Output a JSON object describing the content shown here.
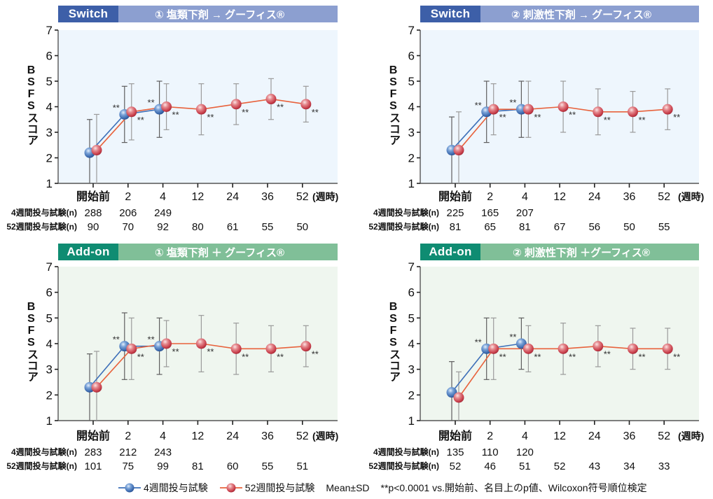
{
  "figure": {
    "y_axis_label": "BSFSスコア",
    "x_unit": "(週時)"
  },
  "legend": {
    "series_4w": "4週間投与試験",
    "series_52w": "52週間投与試験",
    "mean_sd": "Mean±SD",
    "footnote": "**p<0.0001 vs.開始前、名目上のp値、Wilcoxon符号順位検定"
  },
  "colors": {
    "series_4w": "#3d6fb8",
    "series_52w": "#e8623c",
    "switch_tag": "#3d5fa8",
    "switch_bar": "#8c9fd0",
    "addon_tag": "#0f8c72",
    "addon_bar": "#80bf98",
    "switch_plot_bg": "#eef6fd",
    "addon_plot_bg": "#eff6ef"
  },
  "chart_data": [
    {
      "type": "line",
      "header": {
        "tag": "Switch",
        "title": "① 塩類下剤 → グーフィス®"
      },
      "title": "Switch ① 塩類下剤 → グーフィス®",
      "xlabel": "(週時)",
      "ylabel": "BSFSスコア",
      "ylim": [
        1,
        7
      ],
      "yticks": [
        "1",
        "2",
        "3",
        "4",
        "5",
        "6",
        "7"
      ],
      "grid": false,
      "categories": [
        "開始前",
        "2",
        "4",
        "12",
        "24",
        "36",
        "52"
      ],
      "colors": {
        "tag": "#3d5fa8",
        "bar": "#8c9fd0",
        "plot_bg": "#eef6fd"
      },
      "series": [
        {
          "name": "4週間投与試験",
          "color": "#3d6fb8",
          "values": [
            2.2,
            3.7,
            3.9,
            null,
            null,
            null,
            null
          ],
          "sd": [
            1.3,
            1.1,
            1.1,
            null,
            null,
            null,
            null
          ],
          "significance": [
            "",
            "**",
            "**",
            "",
            "",
            "",
            ""
          ]
        },
        {
          "name": "52週間投与試験",
          "color": "#e8623c",
          "values": [
            2.3,
            3.8,
            4.0,
            3.9,
            4.1,
            4.3,
            4.1
          ],
          "sd": [
            1.4,
            1.1,
            0.9,
            1.0,
            0.8,
            0.8,
            0.7
          ],
          "significance": [
            "",
            "**",
            "**",
            "**",
            "**",
            "**",
            "**"
          ]
        }
      ],
      "n_rows": [
        {
          "label": "4週間投与試験(n)",
          "values": [
            "288",
            "206",
            "249"
          ]
        },
        {
          "label": "52週間投与試験(n)",
          "values": [
            "90",
            "70",
            "92",
            "80",
            "61",
            "55",
            "50"
          ]
        }
      ]
    },
    {
      "type": "line",
      "header": {
        "tag": "Switch",
        "title": "② 刺激性下剤 → グーフィス®"
      },
      "title": "Switch ② 刺激性下剤 → グーフィス®",
      "xlabel": "(週時)",
      "ylabel": "BSFSスコア",
      "ylim": [
        1,
        7
      ],
      "yticks": [
        "1",
        "2",
        "3",
        "4",
        "5",
        "6",
        "7"
      ],
      "grid": false,
      "categories": [
        "開始前",
        "2",
        "4",
        "12",
        "24",
        "36",
        "52"
      ],
      "colors": {
        "tag": "#3d5fa8",
        "bar": "#8c9fd0",
        "plot_bg": "#eef6fd"
      },
      "series": [
        {
          "name": "4週間投与試験",
          "color": "#3d6fb8",
          "values": [
            2.3,
            3.8,
            3.9,
            null,
            null,
            null,
            null
          ],
          "sd": [
            1.3,
            1.2,
            1.1,
            null,
            null,
            null,
            null
          ],
          "significance": [
            "",
            "**",
            "**",
            "",
            "",
            "",
            ""
          ]
        },
        {
          "name": "52週間投与試験",
          "color": "#e8623c",
          "values": [
            2.3,
            3.9,
            3.9,
            4.0,
            3.8,
            3.8,
            3.9
          ],
          "sd": [
            1.5,
            1.0,
            1.1,
            1.0,
            0.9,
            0.8,
            0.8
          ],
          "significance": [
            "",
            "**",
            "**",
            "**",
            "**",
            "**",
            "**"
          ]
        }
      ],
      "n_rows": [
        {
          "label": "4週間投与試験(n)",
          "values": [
            "225",
            "165",
            "207"
          ]
        },
        {
          "label": "52週間投与試験(n)",
          "values": [
            "81",
            "65",
            "81",
            "67",
            "56",
            "50",
            "55"
          ]
        }
      ]
    },
    {
      "type": "line",
      "header": {
        "tag": "Add-on",
        "title": "① 塩類下剤 ＋ グーフィス®"
      },
      "title": "Add-on ① 塩類下剤 ＋ グーフィス®",
      "xlabel": "(週時)",
      "ylabel": "BSFSスコア",
      "ylim": [
        1,
        7
      ],
      "yticks": [
        "1",
        "2",
        "3",
        "4",
        "5",
        "6",
        "7"
      ],
      "grid": false,
      "categories": [
        "開始前",
        "2",
        "4",
        "12",
        "24",
        "36",
        "52"
      ],
      "colors": {
        "tag": "#0f8c72",
        "bar": "#80bf98",
        "plot_bg": "#eff6ef"
      },
      "series": [
        {
          "name": "4週間投与試験",
          "color": "#3d6fb8",
          "values": [
            2.3,
            3.9,
            3.9,
            null,
            null,
            null,
            null
          ],
          "sd": [
            1.3,
            1.3,
            1.1,
            null,
            null,
            null,
            null
          ],
          "significance": [
            "",
            "**",
            "**",
            "",
            "",
            "",
            ""
          ]
        },
        {
          "name": "52週間投与試験",
          "color": "#e8623c",
          "values": [
            2.3,
            3.8,
            4.0,
            4.0,
            3.8,
            3.8,
            3.9
          ],
          "sd": [
            1.4,
            1.2,
            0.9,
            1.1,
            1.0,
            0.9,
            0.8
          ],
          "significance": [
            "",
            "**",
            "**",
            "**",
            "**",
            "**",
            "**"
          ]
        }
      ],
      "n_rows": [
        {
          "label": "4週間投与試験(n)",
          "values": [
            "283",
            "212",
            "243"
          ]
        },
        {
          "label": "52週間投与試験(n)",
          "values": [
            "101",
            "75",
            "99",
            "81",
            "60",
            "55",
            "51"
          ]
        }
      ]
    },
    {
      "type": "line",
      "header": {
        "tag": "Add-on",
        "title": "② 刺激性下剤 ＋グーフィス®"
      },
      "title": "Add-on ② 刺激性下剤 ＋グーフィス®",
      "xlabel": "(週時)",
      "ylabel": "BSFSスコア",
      "ylim": [
        1,
        7
      ],
      "yticks": [
        "1",
        "2",
        "3",
        "4",
        "5",
        "6",
        "7"
      ],
      "grid": false,
      "categories": [
        "開始前",
        "2",
        "4",
        "12",
        "24",
        "36",
        "52"
      ],
      "colors": {
        "tag": "#0f8c72",
        "bar": "#80bf98",
        "plot_bg": "#eff6ef"
      },
      "series": [
        {
          "name": "4週間投与試験",
          "color": "#3d6fb8",
          "values": [
            2.1,
            3.8,
            4.0,
            null,
            null,
            null,
            null
          ],
          "sd": [
            1.2,
            1.2,
            1.0,
            null,
            null,
            null,
            null
          ],
          "significance": [
            "",
            "**",
            "**",
            "",
            "",
            "",
            ""
          ]
        },
        {
          "name": "52週間投与試験",
          "color": "#e8623c",
          "values": [
            1.9,
            3.8,
            3.8,
            3.8,
            3.9,
            3.8,
            3.8
          ],
          "sd": [
            1.0,
            1.2,
            0.9,
            1.0,
            0.8,
            0.8,
            0.8
          ],
          "significance": [
            "",
            "**",
            "**",
            "**",
            "**",
            "**",
            "**"
          ]
        }
      ],
      "n_rows": [
        {
          "label": "4週間投与試験(n)",
          "values": [
            "135",
            "110",
            "120"
          ]
        },
        {
          "label": "52週間投与試験(n)",
          "values": [
            "52",
            "46",
            "51",
            "52",
            "43",
            "34",
            "33"
          ]
        }
      ]
    }
  ]
}
